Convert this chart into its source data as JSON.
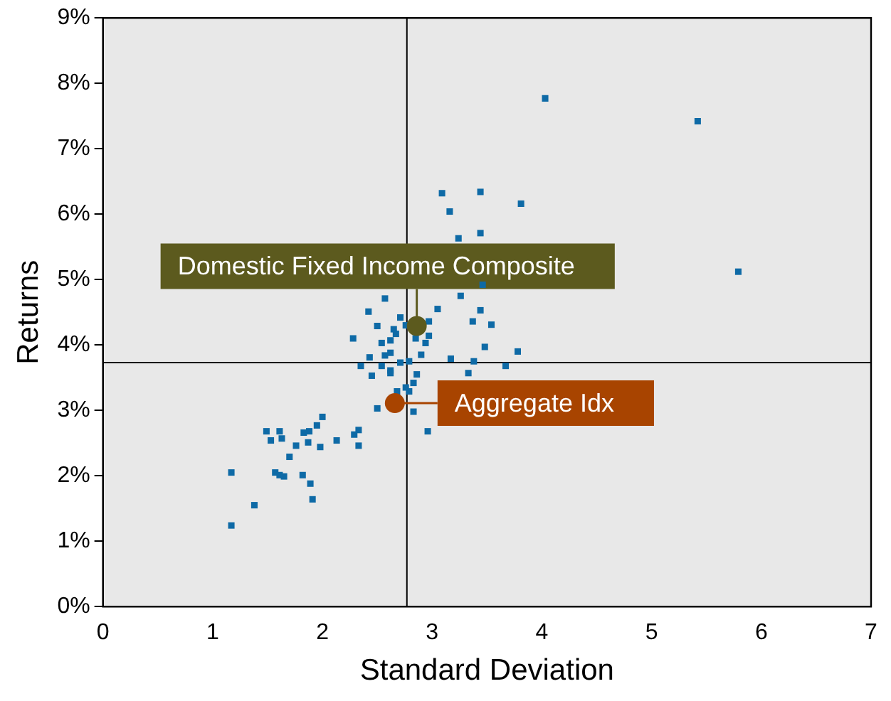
{
  "chart_data": {
    "type": "scatter",
    "xlabel": "Standard Deviation",
    "ylabel": "Returns",
    "xlim": [
      0,
      7
    ],
    "xticks": [
      0,
      1,
      2,
      3,
      4,
      5,
      6,
      7
    ],
    "ylim": [
      0,
      9
    ],
    "yticks": [
      {
        "value": 0,
        "label": "0%"
      },
      {
        "value": 1,
        "label": "1%"
      },
      {
        "value": 2,
        "label": "2%"
      },
      {
        "value": 3,
        "label": "3%"
      },
      {
        "value": 4,
        "label": "4%"
      },
      {
        "value": 5,
        "label": "5%"
      },
      {
        "value": 6,
        "label": "6%"
      },
      {
        "value": 7,
        "label": "7%"
      },
      {
        "value": 8,
        "label": "8%"
      },
      {
        "value": 9,
        "label": "9%"
      }
    ],
    "grid": false,
    "annotations": [
      {
        "text": "Domestic Fixed Income Composite",
        "x": 2.86,
        "y": 4.29
      },
      {
        "text": "Aggregate Idx",
        "x": 2.66,
        "y": 3.11
      }
    ],
    "ref_lines": [
      {
        "axis": "x",
        "value": 2.77,
        "color": "#000000"
      },
      {
        "axis": "y",
        "value": 3.73,
        "color": "#000000"
      }
    ],
    "series": [
      {
        "color": "#0e6aa6",
        "marker": "square",
        "x": [
          4.03,
          5.42,
          5.79,
          3.09,
          3.44,
          3.81,
          3.16,
          3.24,
          3.44,
          3.46,
          3.26,
          2.57,
          2.42,
          3.05,
          3.44,
          2.71,
          2.5,
          2.76,
          2.97,
          3.37,
          3.54,
          2.65,
          2.67,
          2.28,
          2.85,
          2.97,
          2.94,
          2.54,
          2.62,
          3.48,
          3.78,
          2.9,
          2.62,
          2.57,
          2.43,
          2.79,
          2.71,
          3.17,
          3.38,
          2.35,
          2.54,
          2.62,
          2.62,
          3.67,
          3.33,
          2.45,
          2.86,
          2.83,
          2.76,
          2.79,
          2.68,
          2.5,
          2.83,
          2.96,
          2.0,
          1.95,
          2.13,
          2.33,
          2.29,
          2.33,
          1.88,
          1.83,
          1.87,
          1.98,
          1.76,
          1.49,
          1.61,
          1.63,
          1.53,
          1.7,
          1.17,
          1.57,
          1.61,
          1.65,
          1.82,
          1.89,
          1.91,
          1.38,
          1.17
        ],
        "values": [
          7.77,
          7.42,
          5.12,
          6.32,
          6.34,
          6.16,
          6.04,
          5.63,
          5.71,
          4.92,
          4.75,
          4.71,
          4.51,
          4.55,
          4.53,
          4.42,
          4.29,
          4.3,
          4.36,
          4.36,
          4.31,
          4.24,
          4.17,
          4.1,
          4.1,
          4.14,
          4.03,
          4.03,
          4.07,
          3.97,
          3.9,
          3.85,
          3.88,
          3.84,
          3.81,
          3.75,
          3.73,
          3.79,
          3.75,
          3.68,
          3.68,
          3.61,
          3.57,
          3.68,
          3.57,
          3.53,
          3.55,
          3.42,
          3.35,
          3.29,
          3.29,
          3.03,
          2.98,
          2.68,
          2.9,
          2.77,
          2.54,
          2.7,
          2.63,
          2.46,
          2.68,
          2.66,
          2.51,
          2.44,
          2.46,
          2.68,
          2.68,
          2.57,
          2.54,
          2.29,
          2.05,
          2.05,
          2.01,
          1.99,
          2.01,
          1.88,
          1.64,
          1.55,
          1.24
        ]
      },
      {
        "color": "#5c5a1e",
        "marker": "circle",
        "x": [
          2.86
        ],
        "values": [
          4.29
        ]
      },
      {
        "color": "#a84400",
        "marker": "circle",
        "x": [
          2.66
        ],
        "values": [
          3.11
        ]
      }
    ]
  }
}
